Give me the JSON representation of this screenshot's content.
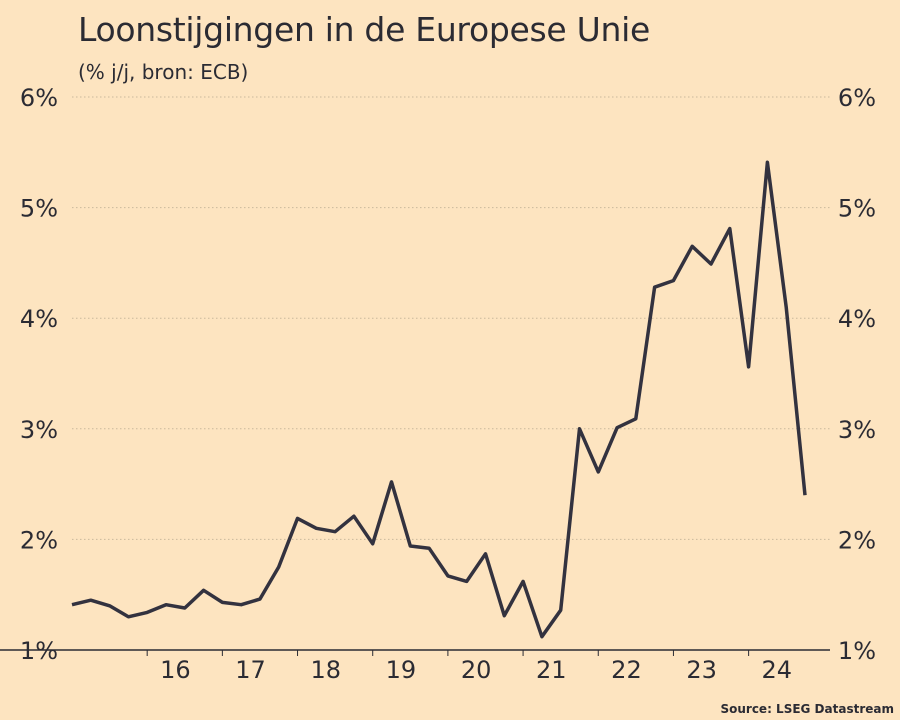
{
  "chart_data": {
    "type": "line",
    "title": "Loonstijgingen in de Europese Unie",
    "subtitle": "(% j/j, bron: ECB)",
    "source": "Source: LSEG Datastream",
    "ylim": [
      1,
      6
    ],
    "yticks": [
      "1%",
      "2%",
      "3%",
      "4%",
      "5%",
      "6%"
    ],
    "xticks": [
      "16",
      "17",
      "18",
      "19",
      "20",
      "21",
      "22",
      "23",
      "24"
    ],
    "grid": true,
    "line_color": "#33323f",
    "series": [
      {
        "x": [
          "2015Q1",
          "2015Q2",
          "2015Q3",
          "2015Q4",
          "2016Q1",
          "2016Q2",
          "2016Q3",
          "2016Q4",
          "2017Q1",
          "2017Q2",
          "2017Q3",
          "2017Q4",
          "2018Q1",
          "2018Q2",
          "2018Q3",
          "2018Q4",
          "2019Q1",
          "2019Q2",
          "2019Q3",
          "2019Q4",
          "2020Q1",
          "2020Q2",
          "2020Q3",
          "2020Q4",
          "2021Q1",
          "2021Q2",
          "2021Q3",
          "2021Q4",
          "2022Q1",
          "2022Q2",
          "2022Q3",
          "2022Q4",
          "2023Q1",
          "2023Q2",
          "2023Q3",
          "2023Q4",
          "2024Q1",
          "2024Q2",
          "2024Q3",
          "2024Q4"
        ],
        "values": [
          1.41,
          1.45,
          1.4,
          1.3,
          1.34,
          1.41,
          1.38,
          1.54,
          1.43,
          1.41,
          1.46,
          1.75,
          2.19,
          2.1,
          2.07,
          2.21,
          1.96,
          2.52,
          1.94,
          1.92,
          1.67,
          1.62,
          1.87,
          1.31,
          1.62,
          1.12,
          1.36,
          3.0,
          2.61,
          3.01,
          3.09,
          4.28,
          4.34,
          4.65,
          4.49,
          4.81,
          3.56,
          5.41,
          4.1,
          2.4
        ]
      }
    ]
  }
}
